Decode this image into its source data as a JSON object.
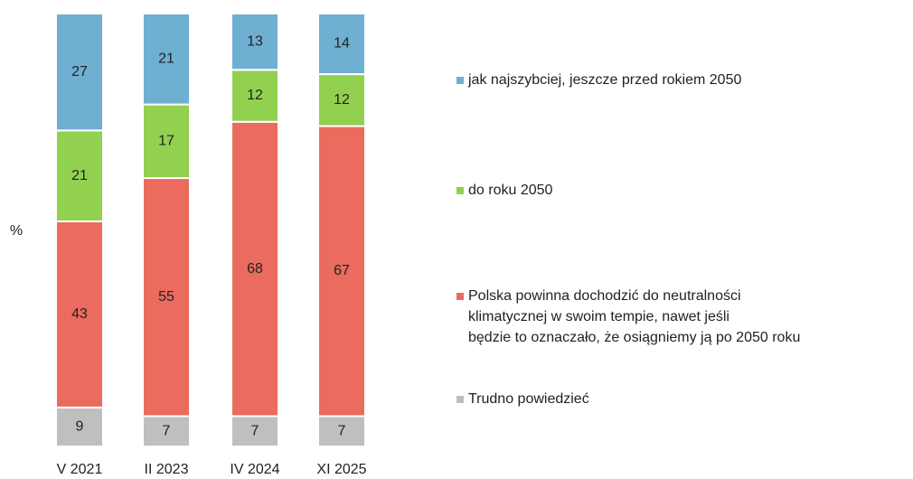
{
  "chart_data": {
    "type": "stacked_bar",
    "ylabel": "%",
    "categories": [
      "V 2021",
      "II 2023",
      "IV 2024",
      "XI 2025"
    ],
    "ylim": [
      0,
      100
    ],
    "series": [
      {
        "name": "jak najszybciej, jeszcze przed rokiem 2050",
        "color": "#6fafd2",
        "values": [
          27,
          21,
          13,
          14
        ]
      },
      {
        "name": "do roku 2050",
        "color": "#92d050",
        "values": [
          21,
          17,
          12,
          12
        ]
      },
      {
        "name": "Polska powinna dochodzić do neutralności\nklimatycznej w swoim tempie, nawet jeśli\nbędzie to oznaczało, że osiągniemy ją po 2050 roku",
        "color": "#eb6b5e",
        "values": [
          43,
          55,
          68,
          67
        ]
      },
      {
        "name": "Trudno powiedzieć",
        "color": "#bfbfbf",
        "values": [
          9,
          7,
          7,
          7
        ]
      }
    ]
  }
}
